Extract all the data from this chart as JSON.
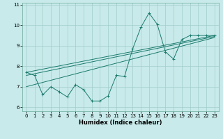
{
  "xlabel": "Humidex (Indice chaleur)",
  "ylabel": "",
  "bg_color": "#c8eaea",
  "line_color": "#1a7a6e",
  "grid_color": "#a0ccca",
  "xlim": [
    -0.5,
    23.5
  ],
  "ylim": [
    5.8,
    11.1
  ],
  "yticks": [
    6,
    7,
    8,
    9,
    10,
    11
  ],
  "xticks": [
    0,
    1,
    2,
    3,
    4,
    5,
    6,
    7,
    8,
    9,
    10,
    11,
    12,
    13,
    14,
    15,
    16,
    17,
    18,
    19,
    20,
    21,
    22,
    23
  ],
  "series": [
    [
      0,
      7.7
    ],
    [
      1,
      7.55
    ],
    [
      2,
      6.6
    ],
    [
      3,
      7.0
    ],
    [
      4,
      6.75
    ],
    [
      5,
      6.5
    ],
    [
      6,
      7.1
    ],
    [
      7,
      6.85
    ],
    [
      8,
      6.3
    ],
    [
      9,
      6.3
    ],
    [
      10,
      6.55
    ],
    [
      11,
      7.55
    ],
    [
      12,
      7.5
    ],
    [
      13,
      8.85
    ],
    [
      14,
      9.9
    ],
    [
      15,
      10.6
    ],
    [
      16,
      10.05
    ],
    [
      17,
      8.7
    ],
    [
      18,
      8.35
    ],
    [
      19,
      9.3
    ],
    [
      20,
      9.5
    ],
    [
      21,
      9.5
    ],
    [
      22,
      9.5
    ],
    [
      23,
      9.5
    ]
  ],
  "line1": [
    [
      0,
      7.7
    ],
    [
      23,
      9.5
    ]
  ],
  "line2": [
    [
      0,
      7.55
    ],
    [
      23,
      9.45
    ]
  ],
  "line3": [
    [
      0,
      7.0
    ],
    [
      23,
      9.4
    ]
  ]
}
